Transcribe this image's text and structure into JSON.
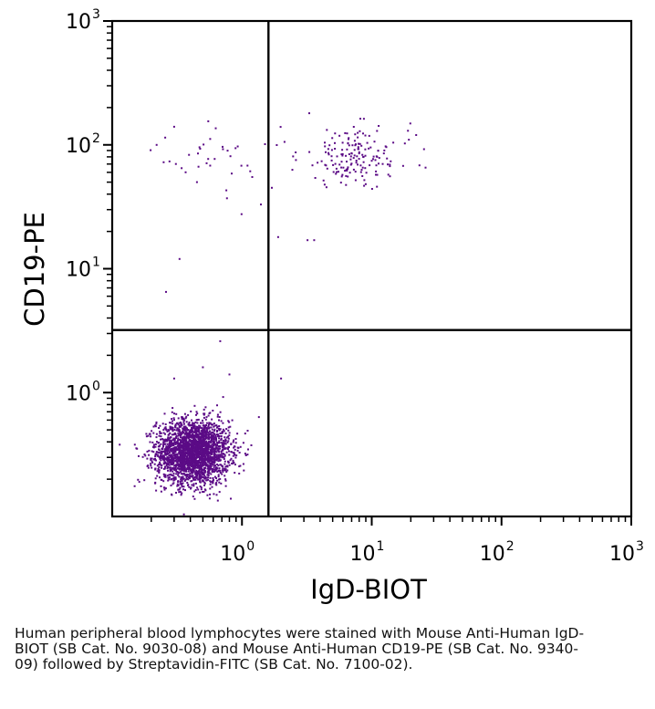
{
  "chart_data": {
    "type": "scatter",
    "subtype": "flow-cytometry-dot-plot",
    "x_scale": "log",
    "y_scale": "log",
    "xlim": [
      0.1,
      1000
    ],
    "ylim": [
      0.1,
      1000
    ],
    "xlabel": "IgD-BIOT",
    "ylabel": "CD19-PE",
    "x_tick_labels": [
      {
        "value": 1,
        "base": "10",
        "exp": "0"
      },
      {
        "value": 10,
        "base": "10",
        "exp": "1"
      },
      {
        "value": 100,
        "base": "10",
        "exp": "2"
      },
      {
        "value": 1000,
        "base": "10",
        "exp": "3"
      }
    ],
    "y_tick_labels": [
      {
        "value": 1,
        "base": "10",
        "exp": "0"
      },
      {
        "value": 10,
        "base": "10",
        "exp": "1"
      },
      {
        "value": 100,
        "base": "10",
        "exp": "2"
      },
      {
        "value": 1000,
        "base": "10",
        "exp": "3"
      }
    ],
    "quadrant_gates": {
      "x": 1.6,
      "y": 3.2
    },
    "point_color": "#5b0b86",
    "axis_color": "#000000",
    "populations": [
      {
        "label": "",
        "center": {
          "x": 0.42,
          "y": 0.33
        },
        "spread_log": {
          "x": 0.14,
          "y": 0.13
        },
        "approx_count": 2600
      },
      {
        "label": "",
        "center": {
          "x": 7.5,
          "y": 80
        },
        "spread_log": {
          "x": 0.22,
          "y": 0.12
        },
        "approx_count": 170
      },
      {
        "label": "",
        "center": {
          "x": 0.6,
          "y": 75
        },
        "spread_log": {
          "x": 0.25,
          "y": 0.14
        },
        "approx_count": 35
      }
    ],
    "scattered_points": [
      {
        "x": 0.33,
        "y": 12
      },
      {
        "x": 0.26,
        "y": 6.5
      },
      {
        "x": 0.68,
        "y": 2.6
      },
      {
        "x": 2.0,
        "y": 1.3
      },
      {
        "x": 1.9,
        "y": 18
      },
      {
        "x": 1.6,
        "y": 1.0
      },
      {
        "x": 3.2,
        "y": 17
      },
      {
        "x": 3.6,
        "y": 17
      },
      {
        "x": 1.7,
        "y": 45
      },
      {
        "x": 0.22,
        "y": 100
      },
      {
        "x": 0.55,
        "y": 155
      },
      {
        "x": 3.3,
        "y": 180
      },
      {
        "x": 22,
        "y": 120
      },
      {
        "x": 19,
        "y": 130
      },
      {
        "x": 1.4,
        "y": 33
      },
      {
        "x": 0.3,
        "y": 140
      },
      {
        "x": 0.45,
        "y": 50
      },
      {
        "x": 1.2,
        "y": 55
      },
      {
        "x": 0.3,
        "y": 1.3
      },
      {
        "x": 0.5,
        "y": 1.6
      },
      {
        "x": 0.8,
        "y": 1.4
      }
    ]
  },
  "caption": "Human peripheral blood lymphocytes were stained with Mouse Anti-Human IgD-BIOT (SB Cat. No. 9030-08) and Mouse Anti-Human CD19-PE (SB Cat. No. 9340-09) followed by Streptavidin-FITC (SB Cat. No. 7100-02)."
}
